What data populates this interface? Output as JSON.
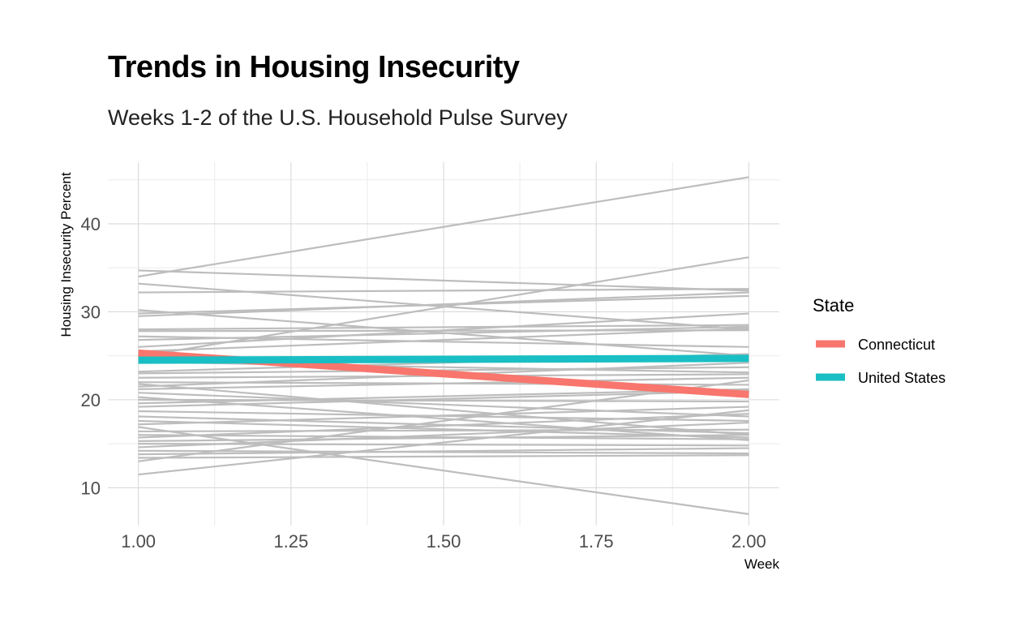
{
  "title": "Trends in Housing Insecurity",
  "subtitle": "Weeks 1-2 of the U.S. Household Pulse Survey",
  "chart_data": {
    "type": "line",
    "title": "Trends in Housing Insecurity",
    "subtitle": "Weeks 1-2 of the U.S. Household Pulse Survey",
    "xlabel": "Week",
    "ylabel": "Housing Insecurity Percent",
    "xlim": [
      0.95,
      2.05
    ],
    "ylim": [
      5.7,
      47
    ],
    "x_ticks": [
      1.0,
      1.25,
      1.5,
      1.75,
      2.0
    ],
    "x_tick_labels": [
      "1.00",
      "1.25",
      "1.50",
      "1.75",
      "2.00"
    ],
    "y_ticks": [
      10,
      20,
      30,
      40
    ],
    "y_tick_labels": [
      "10",
      "20",
      "30",
      "40"
    ],
    "grid": true,
    "x": [
      1,
      2
    ],
    "background_series": [
      [
        34.0,
        45.3
      ],
      [
        34.7,
        32.4
      ],
      [
        33.2,
        28.0
      ],
      [
        32.2,
        32.6
      ],
      [
        30.2,
        25.0
      ],
      [
        29.8,
        31.8
      ],
      [
        29.5,
        32.2
      ],
      [
        28.0,
        28.5
      ],
      [
        27.8,
        27.9
      ],
      [
        27.2,
        26.0
      ],
      [
        26.8,
        28.3
      ],
      [
        26.0,
        29.8
      ],
      [
        25.5,
        28.1
      ],
      [
        24.9,
        36.2
      ],
      [
        24.3,
        23.1
      ],
      [
        23.2,
        25.2
      ],
      [
        23.0,
        23.7
      ],
      [
        22.5,
        22.9
      ],
      [
        22.0,
        21.7
      ],
      [
        21.8,
        16.0
      ],
      [
        21.5,
        24.2
      ],
      [
        21.2,
        22.5
      ],
      [
        20.8,
        18.1
      ],
      [
        20.3,
        15.4
      ],
      [
        20.0,
        19.8
      ],
      [
        19.6,
        21.2
      ],
      [
        19.2,
        21.0
      ],
      [
        18.7,
        17.6
      ],
      [
        18.1,
        16.2
      ],
      [
        17.6,
        15.7
      ],
      [
        17.2,
        19.2
      ],
      [
        16.9,
        7.0
      ],
      [
        16.4,
        16.6
      ],
      [
        16.0,
        15.5
      ],
      [
        15.7,
        18.4
      ],
      [
        15.3,
        16.0
      ],
      [
        15.0,
        14.8
      ],
      [
        14.6,
        17.4
      ],
      [
        14.2,
        13.9
      ],
      [
        13.8,
        14.5
      ],
      [
        13.4,
        13.7
      ],
      [
        13.0,
        22.2
      ],
      [
        11.5,
        18.8
      ]
    ],
    "series": [
      {
        "name": "Connecticut",
        "values": [
          25.3,
          20.6
        ],
        "color": "#f8766d"
      },
      {
        "name": "United States",
        "values": [
          24.5,
          24.7
        ],
        "color": "#19bfc4"
      }
    ],
    "background_color": "#bdbdbd",
    "legend": {
      "title": "State",
      "position": "right"
    }
  }
}
